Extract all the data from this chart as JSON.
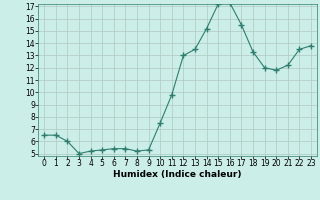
{
  "x": [
    0,
    1,
    2,
    3,
    4,
    5,
    6,
    7,
    8,
    9,
    10,
    11,
    12,
    13,
    14,
    15,
    16,
    17,
    18,
    19,
    20,
    21,
    22,
    23
  ],
  "y": [
    6.5,
    6.5,
    6.0,
    5.0,
    5.2,
    5.3,
    5.4,
    5.4,
    5.2,
    5.3,
    7.5,
    9.8,
    13.0,
    13.5,
    15.2,
    17.2,
    17.3,
    15.5,
    13.3,
    12.0,
    11.8,
    12.2,
    13.5,
    13.8
  ],
  "line_color": "#2e7d6e",
  "marker": "+",
  "marker_size": 4,
  "bg_color": "#cceee8",
  "grid_color": "#b0c8c0",
  "xlabel": "Humidex (Indice chaleur)",
  "ylim": [
    5,
    17
  ],
  "xlim": [
    -0.5,
    23.5
  ],
  "yticks": [
    5,
    6,
    7,
    8,
    9,
    10,
    11,
    12,
    13,
    14,
    15,
    16,
    17
  ],
  "xticks": [
    0,
    1,
    2,
    3,
    4,
    5,
    6,
    7,
    8,
    9,
    10,
    11,
    12,
    13,
    14,
    15,
    16,
    17,
    18,
    19,
    20,
    21,
    22,
    23
  ],
  "tick_fontsize": 5.5,
  "xlabel_fontsize": 6.5
}
